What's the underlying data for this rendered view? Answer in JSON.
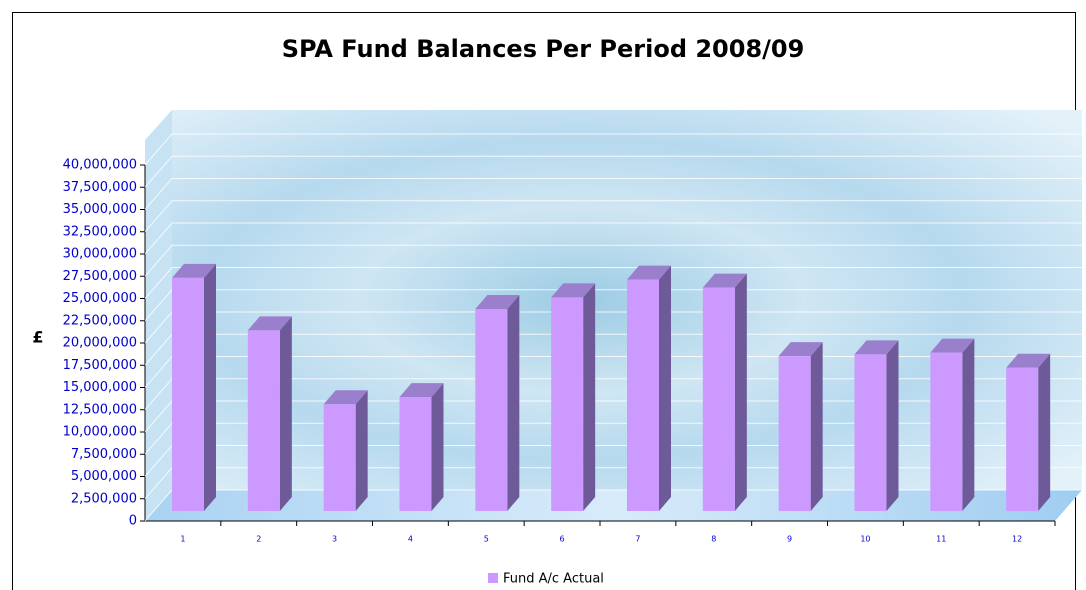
{
  "chart_data": {
    "type": "bar3d",
    "title": "SPA Fund Balances Per Period 2008/09",
    "y_label": "£",
    "categories": [
      "1",
      "2",
      "3",
      "4",
      "5",
      "6",
      "7",
      "8",
      "9",
      "10",
      "11",
      "12"
    ],
    "series": [
      {
        "name": "Fund A/c Actual",
        "color": "#cc99ff",
        "values": [
          26200000,
          20300000,
          12000000,
          12800000,
          22700000,
          24000000,
          26000000,
          25100000,
          17400000,
          17600000,
          17800000,
          16100000
        ]
      }
    ],
    "ylim": [
      0,
      40000000
    ],
    "yticks": [
      0,
      {
        "value": 2500000,
        "label": "2,500,000"
      },
      {
        "value": 5000000,
        "label": "5,000,000"
      },
      {
        "value": 7500000,
        "label": "7,500,000"
      },
      {
        "value": 10000000,
        "label": "10,000,000"
      },
      {
        "value": 12500000,
        "label": "12,500,000"
      },
      {
        "value": 15000000,
        "label": "15,000,000"
      },
      {
        "value": 17500000,
        "label": "17,500,000"
      },
      {
        "value": 20000000,
        "label": "20,000,000"
      },
      {
        "value": 22500000,
        "label": "22,500,000"
      },
      {
        "value": 25000000,
        "label": "25,000,000"
      },
      {
        "value": 27500000,
        "label": "27,500,000"
      },
      {
        "value": 30000000,
        "label": "30,000,000"
      },
      {
        "value": 32500000,
        "label": "32,500,000"
      },
      {
        "value": 35000000,
        "label": "35,000,000"
      },
      {
        "value": 37500000,
        "label": "37,500,000"
      },
      {
        "value": 40000000,
        "label": "40,000,000"
      }
    ],
    "grid": true,
    "legend": "bottom"
  }
}
